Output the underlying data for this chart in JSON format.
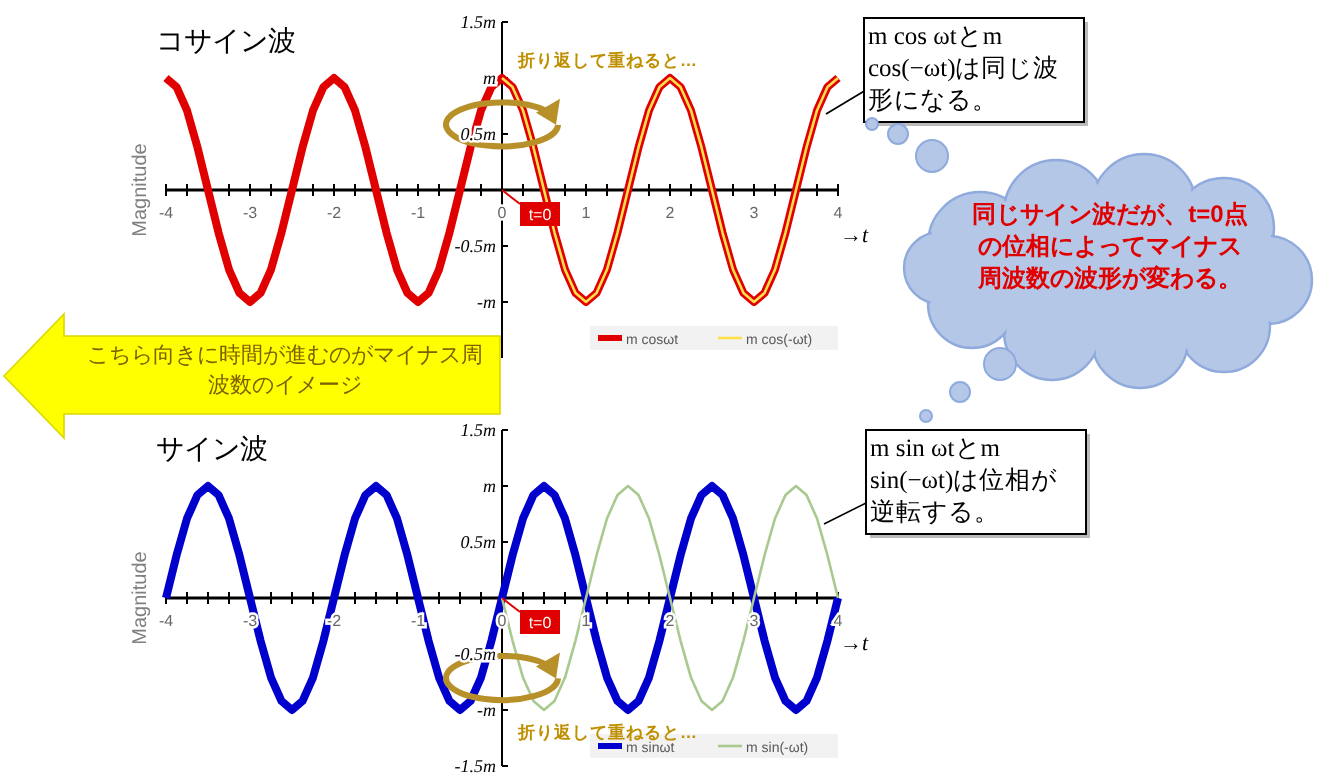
{
  "chart_data": [
    {
      "type": "line",
      "title": "コサイン波",
      "ylabel": "Magnitude",
      "xlabel": "→*t*",
      "xlim": [
        -4,
        4
      ],
      "ylim": [
        -1.5,
        1.5
      ],
      "yticks": [
        {
          "value": 1.5,
          "label": "1.5m"
        },
        {
          "value": 1,
          "label": "m"
        },
        {
          "value": 0.5,
          "label": "0.5m"
        },
        {
          "value": -0.5,
          "label": "-0.5m"
        },
        {
          "value": -1,
          "label": "-m"
        }
      ],
      "xticks": [
        -4,
        {
          "value": -3.75,
          "label": null
        },
        {
          "value": -3.5,
          "label": null
        },
        {
          "value": -3.25,
          "label": null
        },
        -3,
        {
          "value": -2.75,
          "label": null
        },
        {
          "value": -2.5,
          "label": null
        },
        {
          "value": -2.25,
          "label": null
        },
        -2,
        {
          "value": -1.75,
          "label": null
        },
        {
          "value": -1.5,
          "label": null
        },
        {
          "value": -1.25,
          "label": null
        },
        -1,
        {
          "value": -0.75,
          "label": null
        },
        {
          "value": -0.5,
          "label": null
        },
        {
          "value": -0.25,
          "label": null
        },
        0,
        {
          "value": 0.25,
          "label": null
        },
        {
          "value": 0.5,
          "label": null
        },
        {
          "value": 0.75,
          "label": null
        },
        1,
        {
          "value": 1.25,
          "label": null
        },
        {
          "value": 1.5,
          "label": null
        },
        {
          "value": 1.75,
          "label": null
        },
        2,
        {
          "value": 2.25,
          "label": null
        },
        {
          "value": 2.5,
          "label": null
        },
        {
          "value": 2.75,
          "label": null
        },
        3,
        {
          "value": 3.25,
          "label": null
        },
        {
          "value": 3.5,
          "label": null
        },
        {
          "value": 3.75,
          "label": null
        },
        4
      ],
      "legend": "bottom right",
      "marker": "none",
      "series": [
        {
          "name": "m cosωt",
          "color": "#e00000",
          "x": [
            -4,
            -3.875,
            -3.75,
            -3.625,
            -3.5,
            -3.375,
            -3.25,
            -3.125,
            -3,
            -2.875,
            -2.75,
            -2.625,
            -2.5,
            -2.375,
            -2.25,
            -2.125,
            -2,
            -1.875,
            -1.75,
            -1.625,
            -1.5,
            -1.375,
            -1.25,
            -1.125,
            -1,
            -0.875,
            -0.75,
            -0.625,
            -0.5,
            -0.375,
            -0.25,
            -0.125,
            0,
            0.125,
            0.25,
            0.375,
            0.5,
            0.625,
            0.75,
            0.875,
            1,
            1.125,
            1.25,
            1.375,
            1.5,
            1.625,
            1.75,
            1.875,
            2,
            2.125,
            2.25,
            2.375,
            2.5,
            2.625,
            2.75,
            2.875,
            3,
            3.125,
            3.25,
            3.375,
            3.5,
            3.625,
            3.75,
            3.875,
            4
          ],
          "values": [
            1,
            0.92,
            0.71,
            0.38,
            0,
            -0.38,
            -0.71,
            -0.92,
            -1,
            -0.92,
            -0.71,
            -0.38,
            0,
            0.38,
            0.71,
            0.92,
            1,
            0.92,
            0.71,
            0.38,
            0,
            -0.38,
            -0.71,
            -0.92,
            -1,
            -0.92,
            -0.71,
            -0.38,
            0,
            0.38,
            0.71,
            0.92,
            1,
            0.92,
            0.71,
            0.38,
            0,
            -0.38,
            -0.71,
            -0.92,
            -1,
            -0.92,
            -0.71,
            -0.38,
            0,
            0.38,
            0.71,
            0.92,
            1,
            0.92,
            0.71,
            0.38,
            0,
            -0.38,
            -0.71,
            -0.92,
            -1,
            -0.92,
            -0.71,
            -0.38,
            0,
            0.38,
            0.71,
            0.92,
            1
          ]
        },
        {
          "name": "m cos(-ωt)",
          "color": "#ffe04a",
          "x": [
            0,
            0.125,
            0.25,
            0.375,
            0.5,
            0.625,
            0.75,
            0.875,
            1,
            1.125,
            1.25,
            1.375,
            1.5,
            1.625,
            1.75,
            1.875,
            2,
            2.125,
            2.25,
            2.375,
            2.5,
            2.625,
            2.75,
            2.875,
            3,
            3.125,
            3.25,
            3.375,
            3.5,
            3.625,
            3.75,
            3.875,
            4
          ],
          "values": [
            1,
            0.92,
            0.71,
            0.38,
            0,
            -0.38,
            -0.71,
            -0.92,
            -1,
            -0.92,
            -0.71,
            -0.38,
            0,
            0.38,
            0.71,
            0.92,
            1,
            0.92,
            0.71,
            0.38,
            0,
            -0.38,
            -0.71,
            -0.92,
            -1,
            -0.92,
            -0.71,
            -0.38,
            0,
            0.38,
            0.71,
            0.92,
            1
          ]
        }
      ],
      "annotations": [
        "t=0",
        "折り返して重ねると…",
        "m cos ωtとm cos(−ωt)は同じ波形になる。",
        "こちら向きに時間が進むのがマイナス周波数のイメージ",
        "同じサイン波だが、t=0点の位相によってマイナス周波数の波形が変わる。"
      ]
    },
    {
      "type": "line",
      "title": "サイン波",
      "ylabel": "Magnitude",
      "xlabel": "→*t*",
      "xlim": [
        -4,
        4
      ],
      "ylim": [
        -1.5,
        1.5
      ],
      "yticks": [
        {
          "value": 1.5,
          "label": "1.5m"
        },
        {
          "value": 1,
          "label": "m"
        },
        {
          "value": 0.5,
          "label": "0.5m"
        },
        {
          "value": -0.5,
          "label": "-0.5m"
        },
        {
          "value": -1,
          "label": "-m"
        },
        {
          "value": -1.5,
          "label": "-1.5m"
        }
      ],
      "xticks": [
        -4,
        {
          "value": -3.75,
          "label": null
        },
        {
          "value": -3.5,
          "label": null
        },
        {
          "value": -3.25,
          "label": null
        },
        -3,
        {
          "value": -2.75,
          "label": null
        },
        {
          "value": -2.5,
          "label": null
        },
        {
          "value": -2.25,
          "label": null
        },
        -2,
        {
          "value": -1.75,
          "label": null
        },
        {
          "value": -1.5,
          "label": null
        },
        {
          "value": -1.25,
          "label": null
        },
        -1,
        {
          "value": -0.75,
          "label": null
        },
        {
          "value": -0.5,
          "label": null
        },
        {
          "value": -0.25,
          "label": null
        },
        0,
        {
          "value": 0.25,
          "label": null
        },
        {
          "value": 0.5,
          "label": null
        },
        {
          "value": 0.75,
          "label": null
        },
        1,
        {
          "value": 1.25,
          "label": null
        },
        {
          "value": 1.5,
          "label": null
        },
        {
          "value": 1.75,
          "label": null
        },
        2,
        {
          "value": 2.25,
          "label": null
        },
        {
          "value": 2.5,
          "label": null
        },
        {
          "value": 2.75,
          "label": null
        },
        3,
        {
          "value": 3.25,
          "label": null
        },
        {
          "value": 3.5,
          "label": null
        },
        {
          "value": 3.75,
          "label": null
        },
        4
      ],
      "legend": "bottom right",
      "marker": "none",
      "series": [
        {
          "name": "m sinωt",
          "color": "#0000cc",
          "x": [
            -4,
            -3.875,
            -3.75,
            -3.625,
            -3.5,
            -3.375,
            -3.25,
            -3.125,
            -3,
            -2.875,
            -2.75,
            -2.625,
            -2.5,
            -2.375,
            -2.25,
            -2.125,
            -2,
            -1.875,
            -1.75,
            -1.625,
            -1.5,
            -1.375,
            -1.25,
            -1.125,
            -1,
            -0.875,
            -0.75,
            -0.625,
            -0.5,
            -0.375,
            -0.25,
            -0.125,
            0,
            0.125,
            0.25,
            0.375,
            0.5,
            0.625,
            0.75,
            0.875,
            1,
            1.125,
            1.25,
            1.375,
            1.5,
            1.625,
            1.75,
            1.875,
            2,
            2.125,
            2.25,
            2.375,
            2.5,
            2.625,
            2.75,
            2.875,
            3,
            3.125,
            3.25,
            3.375,
            3.5,
            3.625,
            3.75,
            3.875,
            4
          ],
          "values": [
            0,
            0.38,
            0.71,
            0.92,
            1,
            0.92,
            0.71,
            0.38,
            0,
            -0.38,
            -0.71,
            -0.92,
            -1,
            -0.92,
            -0.71,
            -0.38,
            0,
            0.38,
            0.71,
            0.92,
            1,
            0.92,
            0.71,
            0.38,
            0,
            -0.38,
            -0.71,
            -0.92,
            -1,
            -0.92,
            -0.71,
            -0.38,
            0,
            0.38,
            0.71,
            0.92,
            1,
            0.92,
            0.71,
            0.38,
            0,
            -0.38,
            -0.71,
            -0.92,
            -1,
            -0.92,
            -0.71,
            -0.38,
            0,
            0.38,
            0.71,
            0.92,
            1,
            0.92,
            0.71,
            0.38,
            0,
            -0.38,
            -0.71,
            -0.92,
            -1,
            -0.92,
            -0.71,
            -0.38,
            0
          ]
        },
        {
          "name": "m sin(-ωt)",
          "color": "#a9c98f",
          "x": [
            0,
            0.125,
            0.25,
            0.375,
            0.5,
            0.625,
            0.75,
            0.875,
            1,
            1.125,
            1.25,
            1.375,
            1.5,
            1.625,
            1.75,
            1.875,
            2,
            2.125,
            2.25,
            2.375,
            2.5,
            2.625,
            2.75,
            2.875,
            3,
            3.125,
            3.25,
            3.375,
            3.5,
            3.625,
            3.75,
            3.875,
            4
          ],
          "values": [
            0,
            -0.38,
            -0.71,
            -0.92,
            -1,
            -0.92,
            -0.71,
            -0.38,
            0,
            0.38,
            0.71,
            0.92,
            1,
            0.92,
            0.71,
            0.38,
            0,
            -0.38,
            -0.71,
            -0.92,
            -1,
            -0.92,
            -0.71,
            -0.38,
            0,
            0.38,
            0.71,
            0.92,
            1,
            0.92,
            0.71,
            0.38,
            0
          ]
        }
      ],
      "annotations": [
        "t=0",
        "折り返して重ねると…",
        "m sin ωtとm sin(−ωt)は位相が逆転する。"
      ]
    }
  ]
}
